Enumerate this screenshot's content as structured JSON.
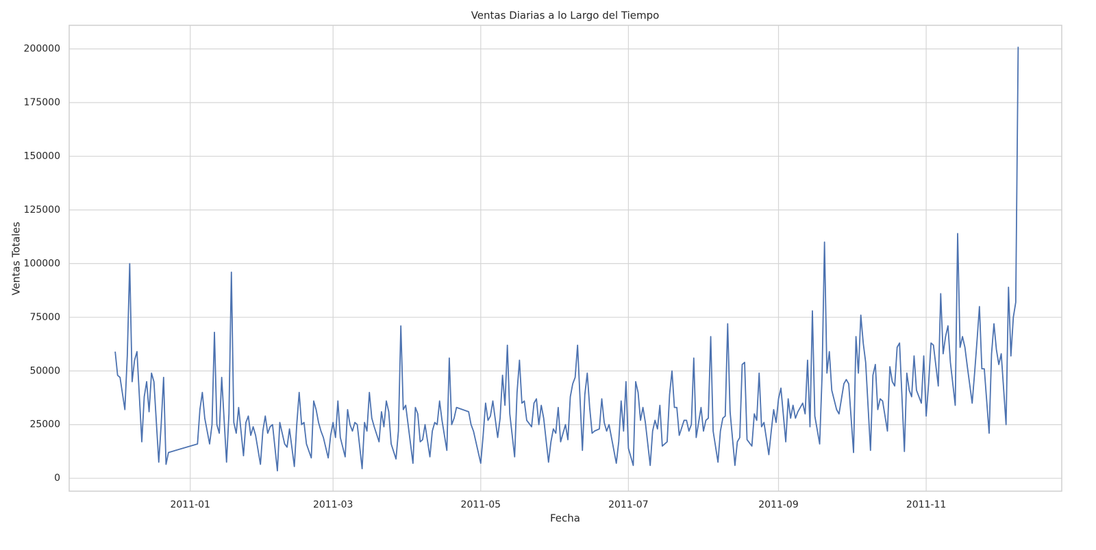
{
  "chart_data": {
    "type": "line",
    "title": "Ventas Diarias a lo Largo del Tiempo",
    "xlabel": "Fecha",
    "ylabel": "Ventas Totales",
    "color": "#4c72b0",
    "grid": true,
    "x": [
      "2010-12-01",
      "2010-12-02",
      "2010-12-03",
      "2010-12-05",
      "2010-12-06",
      "2010-12-07",
      "2010-12-08",
      "2010-12-09",
      "2010-12-10",
      "2010-12-12",
      "2010-12-13",
      "2010-12-14",
      "2010-12-15",
      "2010-12-16",
      "2010-12-17",
      "2010-12-19",
      "2010-12-20",
      "2010-12-21",
      "2010-12-22",
      "2010-12-23",
      "2011-01-04",
      "2011-01-05",
      "2011-01-06",
      "2011-01-07",
      "2011-01-09",
      "2011-01-10",
      "2011-01-11",
      "2011-01-12",
      "2011-01-13",
      "2011-01-14",
      "2011-01-16",
      "2011-01-17",
      "2011-01-18",
      "2011-01-19",
      "2011-01-20",
      "2011-01-21",
      "2011-01-23",
      "2011-01-24",
      "2011-01-25",
      "2011-01-26",
      "2011-01-27",
      "2011-01-28",
      "2011-01-30",
      "2011-01-31",
      "2011-02-01",
      "2011-02-02",
      "2011-02-03",
      "2011-02-04",
      "2011-02-06",
      "2011-02-07",
      "2011-02-08",
      "2011-02-09",
      "2011-02-10",
      "2011-02-11",
      "2011-02-13",
      "2011-02-14",
      "2011-02-15",
      "2011-02-16",
      "2011-02-17",
      "2011-02-18",
      "2011-02-20",
      "2011-02-21",
      "2011-02-22",
      "2011-02-23",
      "2011-02-24",
      "2011-02-25",
      "2011-02-27",
      "2011-02-28",
      "2011-03-01",
      "2011-03-02",
      "2011-03-03",
      "2011-03-04",
      "2011-03-06",
      "2011-03-07",
      "2011-03-08",
      "2011-03-09",
      "2011-03-10",
      "2011-03-11",
      "2011-03-13",
      "2011-03-14",
      "2011-03-15",
      "2011-03-16",
      "2011-03-17",
      "2011-03-18",
      "2011-03-20",
      "2011-03-21",
      "2011-03-22",
      "2011-03-23",
      "2011-03-24",
      "2011-03-25",
      "2011-03-27",
      "2011-03-28",
      "2011-03-29",
      "2011-03-30",
      "2011-03-31",
      "2011-04-01",
      "2011-04-03",
      "2011-04-04",
      "2011-04-05",
      "2011-04-06",
      "2011-04-07",
      "2011-04-08",
      "2011-04-10",
      "2011-04-11",
      "2011-04-12",
      "2011-04-13",
      "2011-04-14",
      "2011-04-15",
      "2011-04-17",
      "2011-04-18",
      "2011-04-19",
      "2011-04-20",
      "2011-04-21",
      "2011-04-26",
      "2011-04-27",
      "2011-04-28",
      "2011-05-01",
      "2011-05-02",
      "2011-05-03",
      "2011-05-04",
      "2011-05-05",
      "2011-05-06",
      "2011-05-08",
      "2011-05-09",
      "2011-05-10",
      "2011-05-11",
      "2011-05-12",
      "2011-05-13",
      "2011-05-15",
      "2011-05-16",
      "2011-05-17",
      "2011-05-18",
      "2011-05-19",
      "2011-05-20",
      "2011-05-22",
      "2011-05-23",
      "2011-05-24",
      "2011-05-25",
      "2011-05-26",
      "2011-05-27",
      "2011-05-29",
      "2011-05-30",
      "2011-05-31",
      "2011-06-01",
      "2011-06-02",
      "2011-06-03",
      "2011-06-05",
      "2011-06-06",
      "2011-06-07",
      "2011-06-08",
      "2011-06-09",
      "2011-06-10",
      "2011-06-12",
      "2011-06-13",
      "2011-06-14",
      "2011-06-15",
      "2011-06-16",
      "2011-06-17",
      "2011-06-19",
      "2011-06-20",
      "2011-06-21",
      "2011-06-22",
      "2011-06-23",
      "2011-06-24",
      "2011-06-26",
      "2011-06-27",
      "2011-06-28",
      "2011-06-29",
      "2011-06-30",
      "2011-07-01",
      "2011-07-03",
      "2011-07-04",
      "2011-07-05",
      "2011-07-06",
      "2011-07-07",
      "2011-07-08",
      "2011-07-10",
      "2011-07-11",
      "2011-07-12",
      "2011-07-13",
      "2011-07-14",
      "2011-07-15",
      "2011-07-17",
      "2011-07-18",
      "2011-07-19",
      "2011-07-20",
      "2011-07-21",
      "2011-07-22",
      "2011-07-24",
      "2011-07-25",
      "2011-07-26",
      "2011-07-27",
      "2011-07-28",
      "2011-07-29",
      "2011-07-31",
      "2011-08-01",
      "2011-08-02",
      "2011-08-03",
      "2011-08-04",
      "2011-08-05",
      "2011-08-07",
      "2011-08-08",
      "2011-08-09",
      "2011-08-10",
      "2011-08-11",
      "2011-08-12",
      "2011-08-14",
      "2011-08-15",
      "2011-08-16",
      "2011-08-17",
      "2011-08-18",
      "2011-08-19",
      "2011-08-21",
      "2011-08-22",
      "2011-08-23",
      "2011-08-24",
      "2011-08-25",
      "2011-08-26",
      "2011-08-28",
      "2011-08-29",
      "2011-08-30",
      "2011-08-31",
      "2011-09-01",
      "2011-09-02",
      "2011-09-04",
      "2011-09-05",
      "2011-09-06",
      "2011-09-07",
      "2011-09-08",
      "2011-09-09",
      "2011-09-11",
      "2011-09-12",
      "2011-09-13",
      "2011-09-14",
      "2011-09-15",
      "2011-09-16",
      "2011-09-18",
      "2011-09-19",
      "2011-09-20",
      "2011-09-21",
      "2011-09-22",
      "2011-09-23",
      "2011-09-25",
      "2011-09-26",
      "2011-09-27",
      "2011-09-28",
      "2011-09-29",
      "2011-09-30",
      "2011-10-02",
      "2011-10-03",
      "2011-10-04",
      "2011-10-05",
      "2011-10-06",
      "2011-10-07",
      "2011-10-09",
      "2011-10-10",
      "2011-10-11",
      "2011-10-12",
      "2011-10-13",
      "2011-10-14",
      "2011-10-16",
      "2011-10-17",
      "2011-10-18",
      "2011-10-19",
      "2011-10-20",
      "2011-10-21",
      "2011-10-23",
      "2011-10-24",
      "2011-10-25",
      "2011-10-26",
      "2011-10-27",
      "2011-10-28",
      "2011-10-30",
      "2011-10-31",
      "2011-11-01",
      "2011-11-02",
      "2011-11-03",
      "2011-11-04",
      "2011-11-06",
      "2011-11-07",
      "2011-11-08",
      "2011-11-09",
      "2011-11-10",
      "2011-11-11",
      "2011-11-13",
      "2011-11-14",
      "2011-11-15",
      "2011-11-16",
      "2011-11-17",
      "2011-11-18",
      "2011-11-20",
      "2011-11-21",
      "2011-11-22",
      "2011-11-23",
      "2011-11-24",
      "2011-11-25",
      "2011-11-27",
      "2011-11-28",
      "2011-11-29",
      "2011-11-30",
      "2011-12-01",
      "2011-12-02",
      "2011-12-04",
      "2011-12-05",
      "2011-12-06",
      "2011-12-07",
      "2011-12-08",
      "2011-12-09"
    ],
    "values": [
      59000,
      48000,
      47000,
      32000,
      57000,
      100000,
      45000,
      55000,
      59000,
      17000,
      38000,
      45000,
      31000,
      49000,
      45000,
      7500,
      25000,
      47000,
      6500,
      12000,
      16000,
      32000,
      40000,
      28000,
      16000,
      25000,
      68000,
      25000,
      21000,
      47000,
      7500,
      30000,
      96000,
      26000,
      21000,
      33000,
      10500,
      26000,
      29000,
      20000,
      24000,
      20000,
      6500,
      22000,
      29000,
      21000,
      24000,
      25000,
      3500,
      26000,
      21000,
      16000,
      14500,
      23000,
      5500,
      25000,
      40000,
      25000,
      26000,
      16000,
      9500,
      36000,
      32000,
      26000,
      22000,
      19000,
      9500,
      20000,
      26000,
      19000,
      36000,
      19000,
      10000,
      32000,
      25000,
      22000,
      26000,
      25000,
      4500,
      26000,
      22000,
      40000,
      28000,
      24000,
      17000,
      31000,
      24000,
      36000,
      31000,
      16000,
      9000,
      22000,
      71000,
      32000,
      34000,
      25000,
      7000,
      33000,
      30000,
      17000,
      18000,
      25000,
      10000,
      22000,
      26000,
      25000,
      36000,
      27000,
      13000,
      56000,
      25000,
      28000,
      33000,
      31000,
      25000,
      22000,
      7000,
      20000,
      35000,
      27000,
      29000,
      36000,
      19000,
      28000,
      48000,
      34000,
      62000,
      30000,
      10000,
      40000,
      55000,
      35000,
      36000,
      27000,
      24000,
      35000,
      37000,
      25000,
      34000,
      28000,
      7500,
      17000,
      23000,
      21000,
      33000,
      17000,
      25000,
      18000,
      38000,
      44000,
      47000,
      62000,
      13000,
      39000,
      49000,
      33000,
      21000,
      22000,
      23000,
      37000,
      26000,
      22000,
      25000,
      19000,
      7000,
      17000,
      36000,
      22000,
      45000,
      14000,
      6000,
      45000,
      40000,
      27000,
      33000,
      26000,
      6000,
      22000,
      27000,
      23000,
      34000,
      15000,
      17000,
      39000,
      50000,
      33000,
      33000,
      20000,
      27000,
      27000,
      22000,
      25000,
      56000,
      19000,
      33000,
      22000,
      27000,
      28000,
      66000,
      22000,
      7500,
      22000,
      28000,
      29000,
      72000,
      31000,
      6000,
      17000,
      19000,
      53000,
      54000,
      18000,
      15000,
      30000,
      27000,
      49000,
      24000,
      26000,
      11000,
      22000,
      32000,
      26000,
      37000,
      42000,
      17000,
      37000,
      28000,
      34000,
      28000,
      31000,
      35000,
      30000,
      55000,
      24000,
      78000,
      29000,
      16000,
      48000,
      110000,
      49000,
      59000,
      41000,
      32000,
      30000,
      37000,
      44000,
      46000,
      44000,
      12000,
      66000,
      49000,
      76000,
      63000,
      54000,
      13000,
      48000,
      53000,
      32000,
      37000,
      36000,
      22000,
      52000,
      45000,
      43000,
      61000,
      63000,
      12500,
      49000,
      41000,
      38000,
      57000,
      41000,
      35000,
      57000,
      29000,
      44000,
      63000,
      62000,
      43000,
      86000,
      58000,
      66000,
      71000,
      54000,
      34000,
      114000,
      61000,
      66000,
      61000,
      52000,
      35000,
      49000,
      64000,
      80000,
      51000,
      51000,
      21000,
      58000,
      72000,
      60000,
      53000,
      58000,
      25000,
      89000,
      57000,
      75000,
      82000,
      201000
    ],
    "xlim": [
      "2010-11-12",
      "2011-12-27"
    ],
    "xticks": [
      "2011-01",
      "2011-03",
      "2011-05",
      "2011-07",
      "2011-09",
      "2011-11"
    ],
    "ylim": [
      -6000,
      211000
    ],
    "yticks": [
      0,
      25000,
      50000,
      75000,
      100000,
      125000,
      150000,
      175000,
      200000
    ]
  }
}
